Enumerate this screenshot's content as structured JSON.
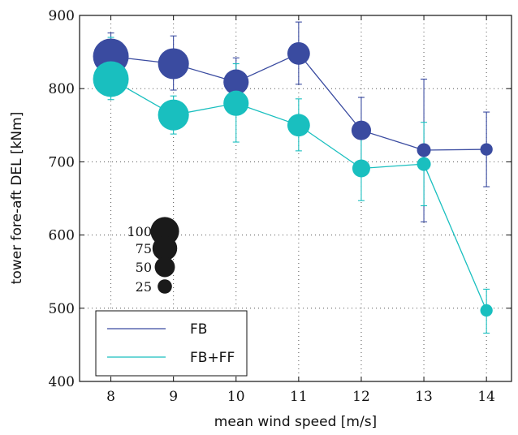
{
  "chart_data": {
    "type": "line",
    "title": "",
    "xlabel": "mean wind speed [m/s]",
    "ylabel": "tower fore-aft DEL [kNm]",
    "xlim": [
      7.5,
      14.4
    ],
    "ylim": [
      400,
      900
    ],
    "xticks": [
      8,
      9,
      10,
      11,
      12,
      13,
      14
    ],
    "xtick_labels": [
      "8",
      "9",
      "10",
      "11",
      "12",
      "13",
      "14"
    ],
    "yticks": [
      400,
      500,
      600,
      700,
      800,
      900
    ],
    "ytick_labels": [
      "400",
      "500",
      "600",
      "700",
      "800",
      "900"
    ],
    "grid": "dotted",
    "legend_position": "bottom-left",
    "marker_size_legend": {
      "values": [
        100,
        75,
        50,
        25
      ],
      "labels": [
        "100",
        "75",
        "50",
        "25"
      ],
      "color": "#1a1a1a"
    },
    "series": [
      {
        "name": "FB",
        "color": "#3a4ba0",
        "x": [
          8,
          9,
          10,
          11,
          12,
          13,
          14
        ],
        "y": [
          844,
          834,
          809,
          848,
          743,
          716,
          717
        ],
        "err_low": [
          818,
          798,
          770,
          806,
          700,
          618,
          666
        ],
        "err_high": [
          876,
          872,
          842,
          891,
          788,
          813,
          768
        ],
        "marker_size": [
          100,
          75,
          50,
          40,
          30,
          15,
          12
        ]
      },
      {
        "name": "FB+FF",
        "color": "#19bfbf",
        "x": [
          8,
          9,
          10,
          11,
          12,
          13,
          14
        ],
        "y": [
          813,
          764,
          780,
          750,
          691,
          697,
          497
        ],
        "err_low": [
          785,
          738,
          727,
          715,
          647,
          640,
          466
        ],
        "err_high": [
          870,
          790,
          834,
          786,
          735,
          754,
          526
        ],
        "marker_size": [
          100,
          75,
          50,
          40,
          25,
          15,
          12
        ]
      }
    ]
  }
}
